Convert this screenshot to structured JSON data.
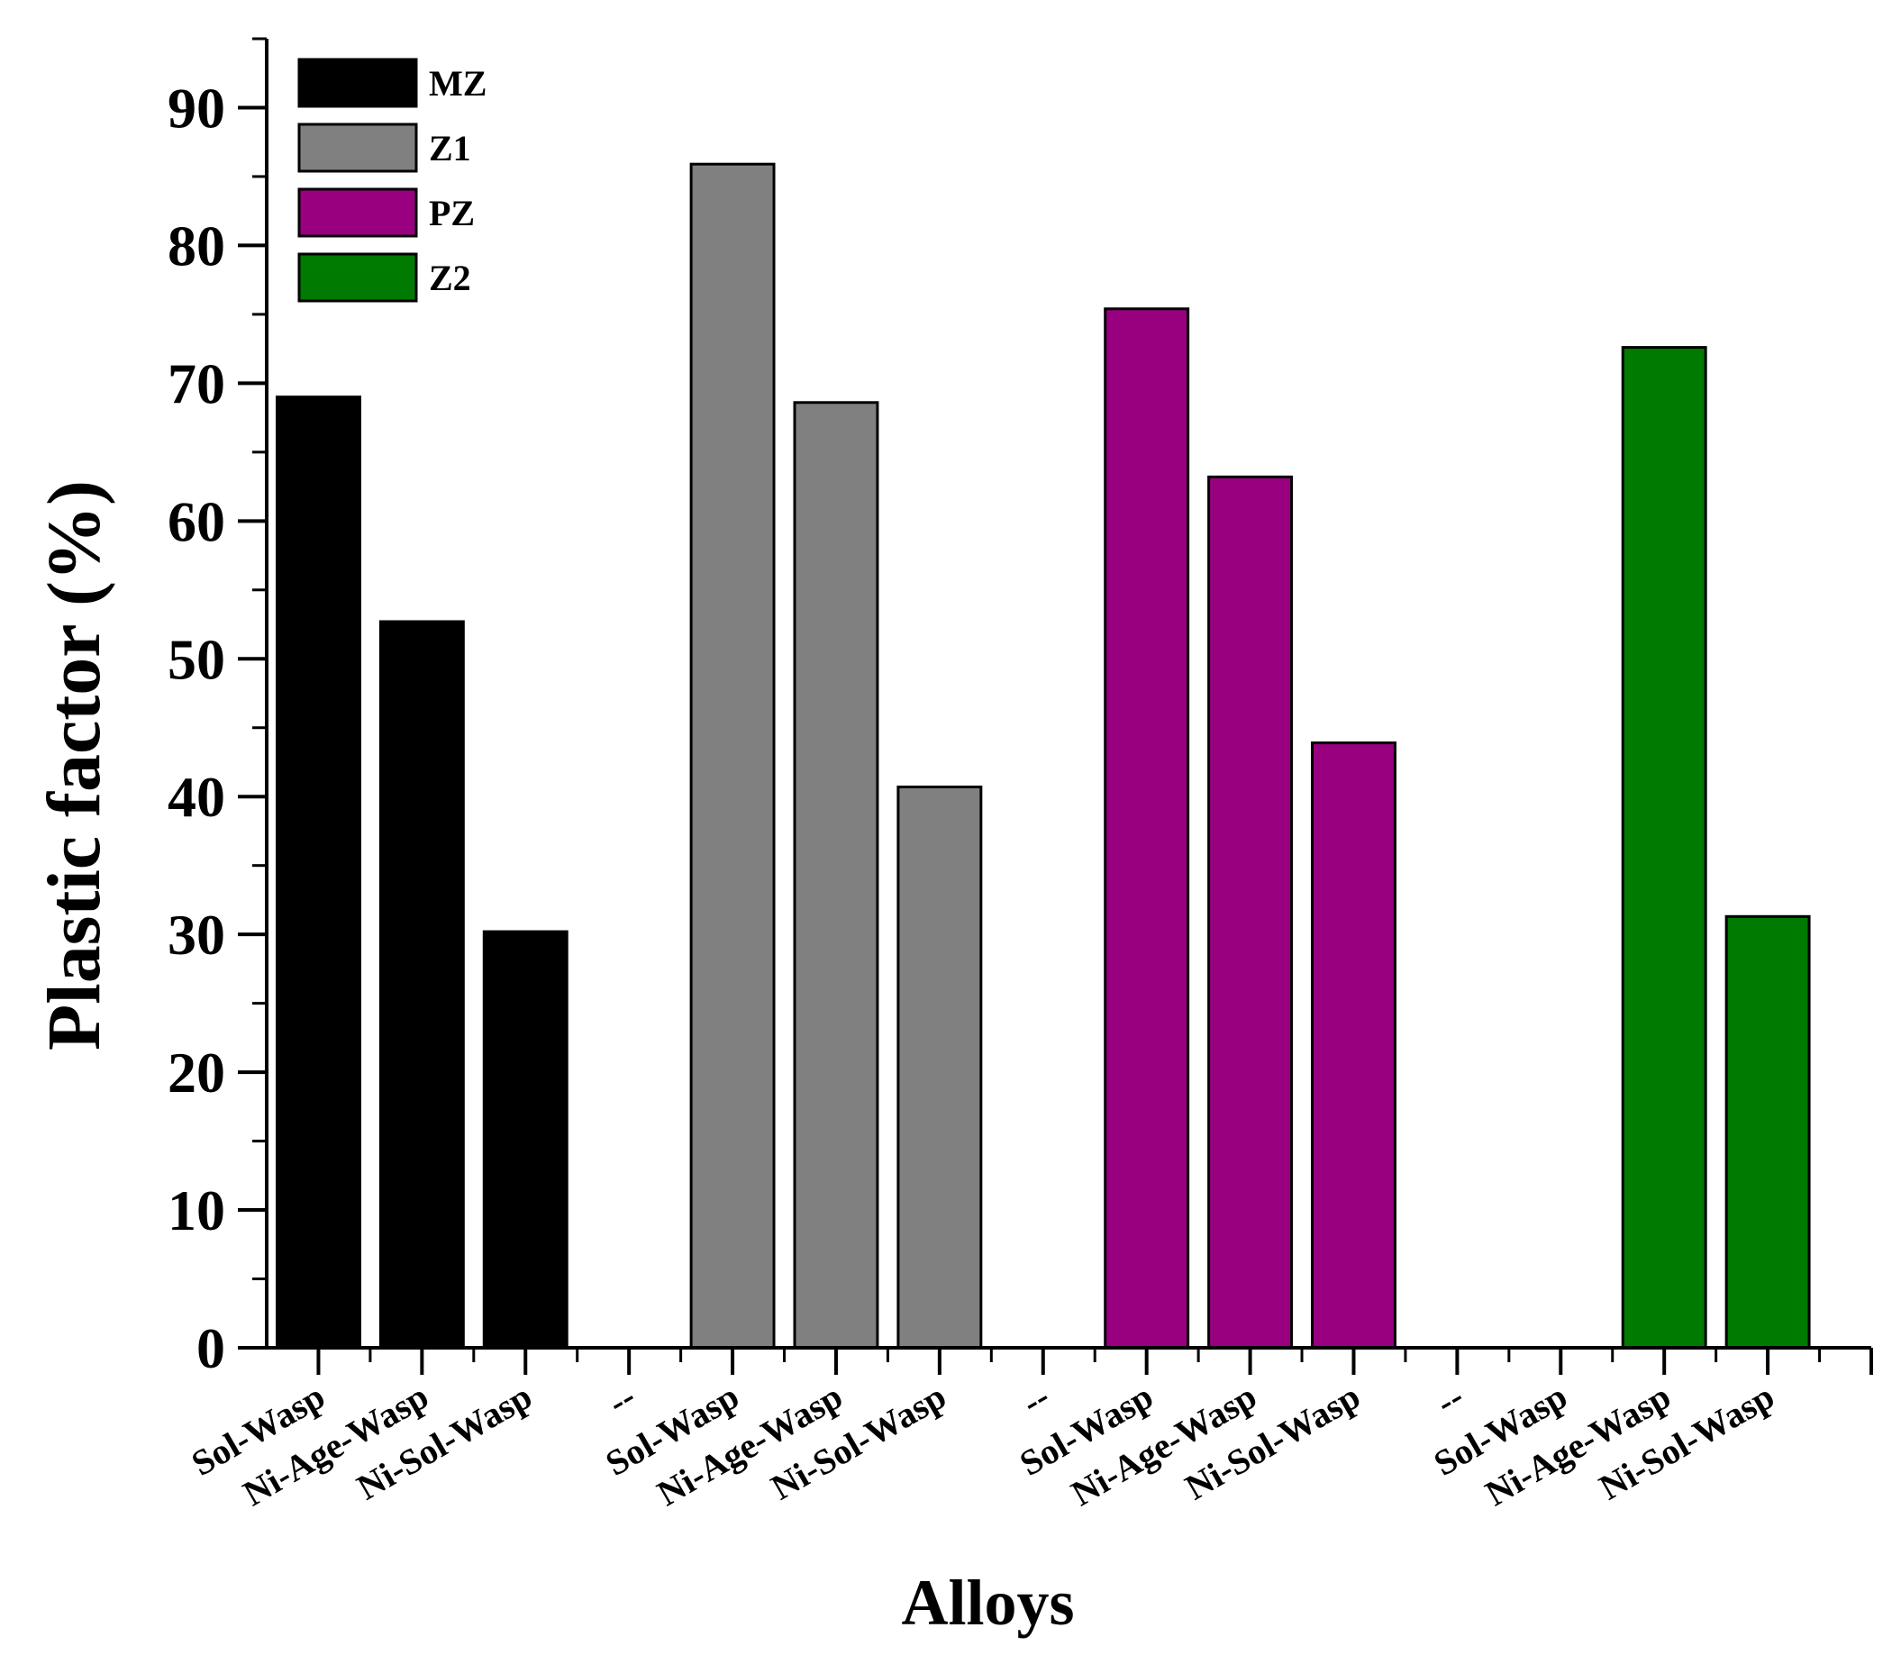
{
  "chart_data": {
    "type": "bar",
    "xlabel": "Alloys",
    "ylabel": "Plastic factor (%)",
    "ylim": [
      0,
      95
    ],
    "yticks": [
      0,
      10,
      20,
      30,
      40,
      50,
      60,
      70,
      80,
      90
    ],
    "grid": false,
    "legend_position": "top-left",
    "categories": [
      "Sol-Wasp",
      "Ni-Age-Wasp",
      "Ni-Sol-Wasp",
      "--",
      "Sol-Wasp",
      "Ni-Age-Wasp",
      "Ni-Sol-Wasp",
      "--",
      "Sol-Wasp",
      "Ni-Age-Wasp",
      "Ni-Sol-Wasp",
      "--",
      "Sol-Wasp",
      "Ni-Age-Wasp",
      "Ni-Sol-Wasp"
    ],
    "series": [
      {
        "name": "MZ",
        "color": "#000000",
        "values": [
          69.0,
          52.7,
          30.2,
          null,
          null,
          null,
          null,
          null,
          null,
          null,
          null,
          null,
          null,
          null,
          null
        ]
      },
      {
        "name": "Z1",
        "color": "#808080",
        "values": [
          null,
          null,
          null,
          null,
          85.9,
          68.6,
          40.7,
          null,
          null,
          null,
          null,
          null,
          null,
          null,
          null
        ]
      },
      {
        "name": "PZ",
        "color": "#990080",
        "values": [
          null,
          null,
          null,
          null,
          null,
          null,
          null,
          null,
          75.4,
          63.2,
          43.9,
          null,
          null,
          null,
          null
        ]
      },
      {
        "name": "Z2",
        "color": "#007A00",
        "values": [
          null,
          null,
          null,
          null,
          null,
          null,
          null,
          null,
          null,
          null,
          null,
          null,
          null,
          72.6,
          31.3
        ]
      }
    ]
  }
}
